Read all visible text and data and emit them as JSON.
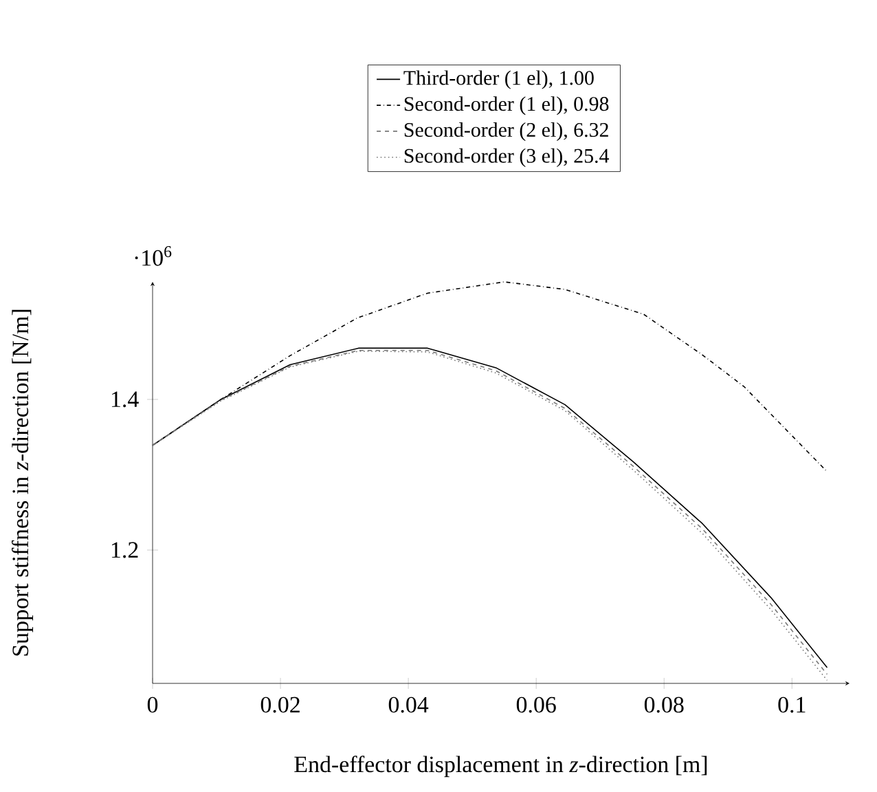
{
  "chart_data": {
    "type": "line",
    "xlabel": "End-effector displacement in *z*-direction [m]",
    "ylabel": "Support stiffness in *z*-direction [N/m]",
    "annotations": [
      "·10$^{6}$"
    ],
    "xlim": [
      0,
      0.109
    ],
    "ylim": [
      1.023,
      1.556
    ],
    "xticks": [
      0,
      0.02,
      0.04,
      0.06,
      0.08,
      0.1
    ],
    "yticks": [
      1.2,
      1.4
    ],
    "legend": "top",
    "grid": false,
    "marker": "none",
    "series": [
      {
        "name": "Third-order (1 el),  1.00",
        "color": "#000000",
        "line_style": "solid",
        "x": [
          0,
          0.0107,
          0.0215,
          0.0322,
          0.043,
          0.0537,
          0.0645,
          0.0752,
          0.086,
          0.0967,
          0.1055
        ],
        "values": [
          1.339,
          1.4,
          1.446,
          1.468,
          1.468,
          1.442,
          1.393,
          1.317,
          1.235,
          1.137,
          1.044
        ]
      },
      {
        "name": "Second-order (1 el),  0.98",
        "color": "#000000",
        "line_style": "dashdot",
        "x": [
          0,
          0.0107,
          0.0215,
          0.032,
          0.043,
          0.055,
          0.0645,
          0.0768,
          0.086,
          0.0925,
          0.1055
        ],
        "values": [
          1.339,
          1.4,
          1.458,
          1.508,
          1.541,
          1.556,
          1.546,
          1.513,
          1.459,
          1.417,
          1.304
        ]
      },
      {
        "name": "Second-order (2 el),  6.32",
        "color": "#777777",
        "line_style": "dashed",
        "x": [
          0,
          0.0107,
          0.0215,
          0.0322,
          0.043,
          0.0537,
          0.0645,
          0.0752,
          0.086,
          0.0967,
          0.1055
        ],
        "values": [
          1.339,
          1.399,
          1.444,
          1.465,
          1.465,
          1.438,
          1.388,
          1.311,
          1.228,
          1.128,
          1.035
        ]
      },
      {
        "name": "Second-order (3 el),  25.4",
        "color": "#777777",
        "line_style": "dotted",
        "x": [
          0,
          0.0107,
          0.0215,
          0.0322,
          0.043,
          0.0537,
          0.0645,
          0.0752,
          0.086,
          0.0967,
          0.1055
        ],
        "values": [
          1.339,
          1.398,
          1.443,
          1.464,
          1.463,
          1.435,
          1.385,
          1.306,
          1.222,
          1.121,
          1.027
        ]
      }
    ]
  }
}
